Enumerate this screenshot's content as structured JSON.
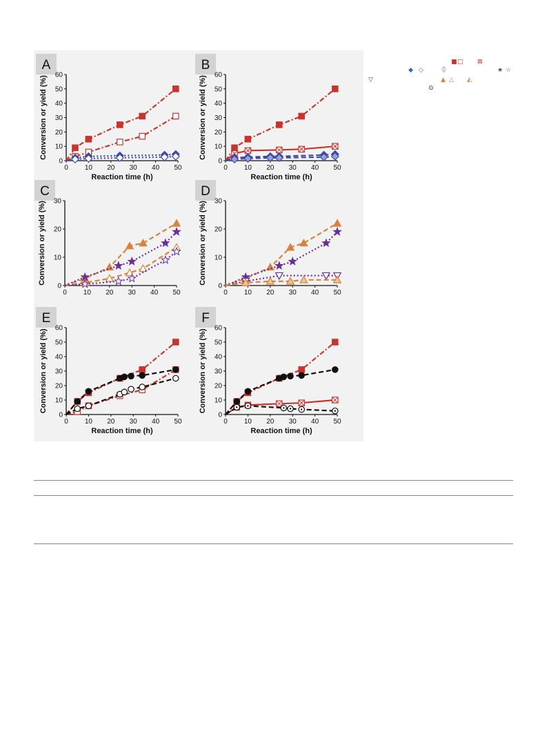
{
  "colors": {
    "red": "#c8352d",
    "blue": "#3c4aa8",
    "purple": "#6a2f9a",
    "orange": "#d9823a",
    "black": "#111111",
    "panel_bg": "#d3d3d3"
  },
  "legend_glyphs": [
    {
      "id": "sq-filled",
      "glyph": "■",
      "color": "#c8352d"
    },
    {
      "id": "sq-open",
      "glyph": "□",
      "color": "#c8352d"
    },
    {
      "id": "sq-crossed",
      "glyph": "⊠",
      "color": "#c8352d"
    },
    {
      "id": "diamond-filled",
      "glyph": "◆",
      "color": "#1f6fc9"
    },
    {
      "id": "diamond-open",
      "glyph": "◇",
      "color": "#1f6fc9"
    },
    {
      "id": "diamond-half",
      "glyph": "⏀",
      "color": "#3c4aa8"
    },
    {
      "id": "star-filled",
      "glyph": "★",
      "color": "#6a2f9a"
    },
    {
      "id": "star-open",
      "glyph": "☆",
      "color": "#6a2f9a"
    },
    {
      "id": "tri-down-open",
      "glyph": "▽",
      "color": "#6a2f9a"
    },
    {
      "id": "tri-filled",
      "glyph": "▲",
      "color": "#d9823a"
    },
    {
      "id": "tri-open",
      "glyph": "△",
      "color": "#d9823a"
    },
    {
      "id": "tri-half",
      "glyph": "◭",
      "color": "#d9823a"
    },
    {
      "id": "circle-dot",
      "glyph": "⊙",
      "color": "#111111"
    }
  ],
  "chart_data": [
    {
      "panel": "A",
      "type": "line",
      "xlabel": "Reaction time (h)",
      "ylabel": "Conversion or yield (%)",
      "xlim": [
        0,
        50
      ],
      "ylim": [
        0,
        60
      ],
      "xticks": [
        0,
        10,
        20,
        30,
        40,
        50
      ],
      "yticks": [
        0,
        10,
        20,
        30,
        40,
        50,
        60
      ],
      "series": [
        {
          "color": "#c8352d",
          "marker": "square-filled",
          "dash": "dashdot",
          "x": [
            0,
            4,
            10,
            24,
            34,
            49
          ],
          "y": [
            0,
            9,
            15,
            25,
            31,
            50
          ]
        },
        {
          "color": "#c8352d",
          "marker": "square-open",
          "dash": "dashdot",
          "x": [
            0,
            4,
            10,
            24,
            34,
            49
          ],
          "y": [
            0,
            3,
            6,
            13,
            17,
            31
          ]
        },
        {
          "color": "#3c4aa8",
          "marker": "diamond-filled",
          "dash": "dot",
          "x": [
            0,
            4,
            10,
            24,
            44,
            49
          ],
          "y": [
            0,
            2,
            3,
            3.5,
            4,
            4.5
          ]
        },
        {
          "color": "#3c4aa8",
          "marker": "diamond-open",
          "dash": "dot",
          "x": [
            0,
            4,
            10,
            24,
            44,
            49
          ],
          "y": [
            0,
            1,
            1.5,
            2,
            2.5,
            3
          ]
        }
      ]
    },
    {
      "panel": "B",
      "type": "line",
      "xlabel": "Reaction time (h)",
      "ylabel": "Conversion or yield (%)",
      "xlim": [
        0,
        50
      ],
      "ylim": [
        0,
        60
      ],
      "xticks": [
        0,
        10,
        20,
        30,
        40,
        50
      ],
      "yticks": [
        0,
        10,
        20,
        30,
        40,
        50,
        60
      ],
      "series": [
        {
          "color": "#c8352d",
          "marker": "square-filled",
          "dash": "dashdot",
          "x": [
            0,
            4,
            10,
            24,
            34,
            49
          ],
          "y": [
            0,
            9,
            15,
            25,
            31,
            50
          ]
        },
        {
          "color": "#c8352d",
          "marker": "square-crossed",
          "dash": "solid",
          "x": [
            0,
            4,
            10,
            24,
            34,
            49
          ],
          "y": [
            0,
            5,
            7,
            7.5,
            8,
            10
          ]
        },
        {
          "color": "#3c4aa8",
          "marker": "diamond-filled",
          "dash": "dash",
          "x": [
            0,
            4,
            10,
            20,
            24,
            44,
            49
          ],
          "y": [
            0,
            2,
            2.5,
            3,
            3,
            4,
            4.5
          ]
        },
        {
          "color": "#3c4aa8",
          "marker": "diamond-half",
          "dash": "dash",
          "x": [
            0,
            4,
            10,
            20,
            24,
            44,
            49
          ],
          "y": [
            0,
            1,
            1.5,
            2,
            2,
            2.5,
            3
          ]
        }
      ]
    },
    {
      "panel": "C",
      "type": "line",
      "xlabel": "",
      "ylabel": "Conversion or yield (%)",
      "xlim": [
        0,
        50
      ],
      "ylim": [
        0,
        30
      ],
      "xticks": [
        0,
        10,
        20,
        30,
        40,
        50
      ],
      "yticks": [
        0,
        10,
        20,
        30
      ],
      "series": [
        {
          "color": "#d9823a",
          "marker": "triangle-filled",
          "dash": "dash",
          "x": [
            0,
            9,
            20,
            29,
            35,
            50
          ],
          "y": [
            0,
            2.5,
            6.5,
            14,
            15,
            22
          ]
        },
        {
          "color": "#6a2f9a",
          "marker": "star-filled",
          "dash": "dot",
          "x": [
            0,
            9,
            24,
            30,
            45,
            50
          ],
          "y": [
            0,
            3,
            7,
            8.5,
            15,
            19
          ]
        },
        {
          "color": "#d9823a",
          "marker": "triangle-open",
          "dash": "dash",
          "x": [
            0,
            9,
            20,
            29,
            35,
            50
          ],
          "y": [
            0,
            1,
            2.5,
            4.5,
            6,
            13.5
          ]
        },
        {
          "color": "#6a2f9a",
          "marker": "star-open",
          "dash": "dot",
          "x": [
            0,
            9,
            24,
            30,
            45,
            50
          ],
          "y": [
            0,
            0.5,
            1.5,
            2.5,
            9,
            12
          ]
        }
      ]
    },
    {
      "panel": "D",
      "type": "line",
      "xlabel": "",
      "ylabel": "Conversion or yield (%)",
      "xlim": [
        0,
        50
      ],
      "ylim": [
        0,
        30
      ],
      "xticks": [
        0,
        10,
        20,
        30,
        40,
        50
      ],
      "yticks": [
        0,
        10,
        20,
        30
      ],
      "series": [
        {
          "color": "#d9823a",
          "marker": "triangle-filled",
          "dash": "dash",
          "x": [
            0,
            9,
            20,
            29,
            35,
            50
          ],
          "y": [
            0,
            2.5,
            6.5,
            13.5,
            15,
            22
          ]
        },
        {
          "color": "#6a2f9a",
          "marker": "star-filled",
          "dash": "dot",
          "x": [
            0,
            9,
            24,
            30,
            45,
            50
          ],
          "y": [
            0,
            3,
            7,
            8.5,
            15,
            19
          ]
        },
        {
          "color": "#6a2f9a",
          "marker": "triangle-down-open",
          "dash": "dot",
          "x": [
            0,
            9,
            24,
            45,
            50
          ],
          "y": [
            0,
            1.5,
            3.5,
            3.5,
            3.5
          ]
        },
        {
          "color": "#d9823a",
          "marker": "triangle-half",
          "dash": "dash",
          "x": [
            0,
            9,
            20,
            29,
            35,
            50
          ],
          "y": [
            0,
            1,
            1.5,
            1.5,
            2,
            2
          ]
        }
      ]
    },
    {
      "panel": "E",
      "type": "line",
      "xlabel": "Reaction time (h)",
      "ylabel": "Conversion or yield (%)",
      "xlim": [
        0,
        50
      ],
      "ylim": [
        0,
        60
      ],
      "xticks": [
        0,
        10,
        20,
        30,
        40,
        50
      ],
      "yticks": [
        0,
        10,
        20,
        30,
        40,
        50,
        60
      ],
      "series": [
        {
          "color": "#c8352d",
          "marker": "square-filled",
          "dash": "dashdot",
          "x": [
            0,
            5,
            10,
            24,
            34,
            49
          ],
          "y": [
            0,
            9,
            15,
            25,
            31,
            50
          ]
        },
        {
          "color": "#c8352d",
          "marker": "square-open",
          "dash": "dashdot",
          "x": [
            0,
            5,
            10,
            24,
            34,
            49
          ],
          "y": [
            0,
            2,
            6,
            13,
            17,
            31
          ]
        },
        {
          "color": "#111111",
          "marker": "circle-filled",
          "dash": "dash",
          "x": [
            0,
            5,
            10,
            24,
            26,
            29,
            34,
            49
          ],
          "y": [
            0,
            9,
            16,
            25,
            26,
            26.5,
            27,
            31
          ]
        },
        {
          "color": "#111111",
          "marker": "circle-open",
          "dash": "dash",
          "x": [
            0,
            5,
            10,
            24,
            26,
            29,
            34,
            49
          ],
          "y": [
            0,
            4,
            6,
            14,
            15.5,
            17.5,
            19,
            25
          ]
        }
      ]
    },
    {
      "panel": "F",
      "type": "line",
      "xlabel": "Reaction time (h)",
      "ylabel": "Conversion or yield (%)",
      "xlim": [
        0,
        50
      ],
      "ylim": [
        0,
        60
      ],
      "xticks": [
        0,
        10,
        20,
        30,
        40,
        50
      ],
      "yticks": [
        0,
        10,
        20,
        30,
        40,
        50,
        60
      ],
      "series": [
        {
          "color": "#c8352d",
          "marker": "square-filled",
          "dash": "dashdot",
          "x": [
            0,
            5,
            10,
            24,
            34,
            49
          ],
          "y": [
            0,
            9,
            15,
            25,
            31,
            50
          ]
        },
        {
          "color": "#c8352d",
          "marker": "square-crossed",
          "dash": "solid",
          "x": [
            0,
            5,
            10,
            24,
            34,
            49
          ],
          "y": [
            0,
            5,
            6.5,
            7.5,
            8,
            10
          ]
        },
        {
          "color": "#111111",
          "marker": "circle-filled",
          "dash": "dash",
          "x": [
            0,
            5,
            10,
            24,
            26,
            29,
            34,
            49
          ],
          "y": [
            0,
            9,
            16,
            25,
            26,
            26.5,
            27,
            31
          ]
        },
        {
          "color": "#111111",
          "marker": "circle-dot",
          "dash": "dash",
          "x": [
            0,
            5,
            10,
            26,
            29,
            34,
            49
          ],
          "y": [
            0,
            5,
            6,
            4.5,
            4,
            3.5,
            2.5
          ]
        }
      ]
    }
  ]
}
